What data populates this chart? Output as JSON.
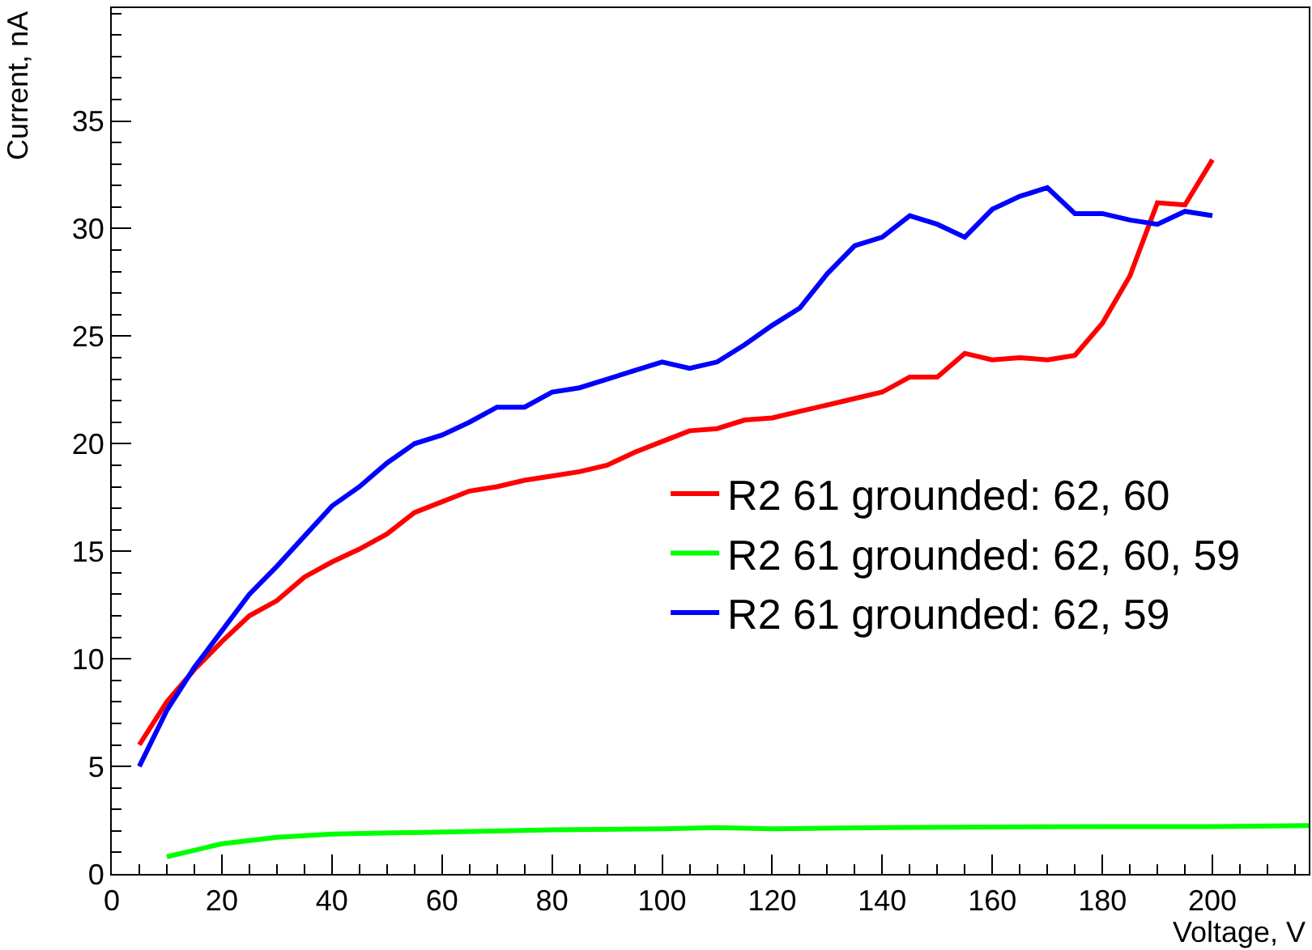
{
  "chart_data": {
    "type": "line",
    "xlabel": "Voltage, V",
    "ylabel": "Current, nA",
    "xlim": [
      0,
      217.5
    ],
    "xticks": [
      0,
      20,
      40,
      60,
      80,
      100,
      120,
      140,
      160,
      180,
      200
    ],
    "ylim": [
      0,
      40.25
    ],
    "yticks": [
      0,
      5,
      10,
      15,
      20,
      25,
      30,
      35
    ],
    "grid": false,
    "legend": "right",
    "marker": "none",
    "line_style": "solid",
    "series": [
      {
        "name": "R2 61 grounded: 62, 60",
        "color": "#ff0000",
        "x": [
          5,
          10,
          15,
          20,
          25,
          30,
          35,
          40,
          45,
          50,
          55,
          60,
          65,
          70,
          75,
          80,
          85,
          90,
          95,
          100,
          105,
          110,
          115,
          120,
          125,
          130,
          135,
          140,
          145,
          150,
          155,
          160,
          165,
          170,
          175,
          180,
          185,
          190,
          195,
          200
        ],
        "values": [
          6.0,
          8.0,
          9.5,
          10.8,
          12.0,
          12.7,
          13.8,
          14.5,
          15.1,
          15.8,
          16.8,
          17.3,
          17.8,
          18.0,
          18.3,
          18.5,
          18.7,
          19.0,
          19.6,
          20.1,
          20.6,
          20.7,
          21.1,
          21.2,
          21.5,
          21.8,
          22.1,
          22.4,
          23.1,
          23.1,
          24.2,
          23.9,
          24.0,
          23.9,
          24.1,
          25.6,
          27.8,
          31.2,
          31.1,
          33.2
        ]
      },
      {
        "name": "R2 61 grounded: 62, 60, 59",
        "color": "#00ff00",
        "x": [
          10,
          20,
          30,
          40,
          60,
          80,
          100,
          110,
          120,
          140,
          160,
          180,
          200,
          217.5
        ],
        "values": [
          0.8,
          1.4,
          1.7,
          1.85,
          1.95,
          2.05,
          2.1,
          2.15,
          2.1,
          2.15,
          2.18,
          2.2,
          2.2,
          2.25
        ]
      },
      {
        "name": "R2 61 grounded: 62, 59",
        "color": "#0000ff",
        "x": [
          5,
          10,
          15,
          20,
          25,
          30,
          35,
          40,
          45,
          50,
          55,
          60,
          65,
          70,
          75,
          80,
          85,
          90,
          95,
          100,
          105,
          110,
          115,
          120,
          125,
          130,
          135,
          140,
          145,
          150,
          155,
          160,
          165,
          170,
          175,
          180,
          185,
          190,
          195,
          200
        ],
        "values": [
          5.0,
          7.6,
          9.6,
          11.3,
          13.0,
          14.3,
          15.7,
          17.1,
          18.0,
          19.1,
          20.0,
          20.4,
          21.0,
          21.7,
          21.7,
          22.4,
          22.6,
          23.0,
          23.4,
          23.8,
          23.5,
          23.8,
          24.6,
          25.5,
          26.3,
          27.9,
          29.2,
          29.6,
          30.6,
          30.2,
          29.6,
          30.9,
          31.5,
          31.9,
          30.7,
          30.7,
          30.4,
          30.2,
          30.8,
          30.6
        ]
      }
    ]
  }
}
